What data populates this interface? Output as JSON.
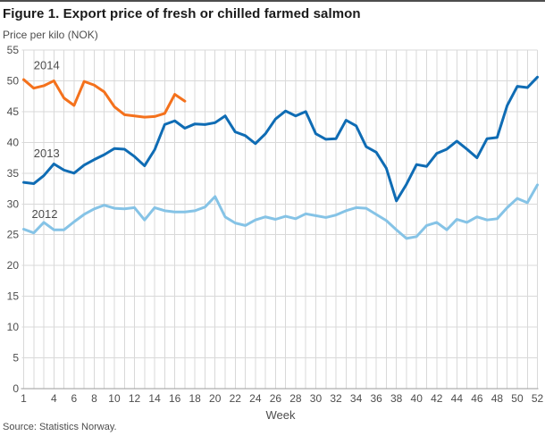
{
  "page": {
    "title": "Figure 1. Export price of fresh or chilled farmed salmon",
    "y_axis_title": "Price per kilo (NOK)",
    "x_axis_title": "Week",
    "source": "Source: Statistics Norway."
  },
  "colors": {
    "series_2014": "#f4711c",
    "series_2013": "#0f6cb4",
    "series_2012": "#85c3e6",
    "gridline": "#d9d9d9",
    "axis_line": "#9b9b9b",
    "tick_text": "#4d4d4d",
    "label_text": "#4d4d4d",
    "title_text": "#1a1a1a",
    "top_rule": "#4d4d4d"
  },
  "chart_data": {
    "type": "line",
    "title": "Figure 1. Export price of fresh or chilled farmed salmon",
    "xlabel": "Week",
    "ylabel": "Price per kilo (NOK)",
    "xlim": [
      1,
      52
    ],
    "ylim": [
      0,
      55
    ],
    "grid": true,
    "legend_position": "inline-left-labels",
    "x_ticks": [
      1,
      4,
      6,
      8,
      10,
      12,
      14,
      16,
      18,
      20,
      22,
      24,
      26,
      28,
      30,
      32,
      34,
      36,
      38,
      40,
      42,
      44,
      46,
      48,
      50,
      52
    ],
    "y_ticks": [
      0,
      5,
      10,
      15,
      20,
      25,
      30,
      35,
      40,
      45,
      50,
      55
    ],
    "series": [
      {
        "name": "2014",
        "color": "#f4711c",
        "label": {
          "week": 2.0,
          "value": 51.9
        },
        "x": [
          1,
          2,
          3,
          4,
          5,
          6,
          7,
          8,
          9,
          10,
          11,
          12,
          13,
          14,
          15,
          16,
          17
        ],
        "values": [
          50.2,
          48.8,
          49.2,
          50.0,
          47.2,
          46.0,
          49.9,
          49.3,
          48.2,
          45.8,
          44.5,
          44.3,
          44.1,
          44.2,
          44.7,
          47.8,
          46.7
        ]
      },
      {
        "name": "2013",
        "color": "#0f6cb4",
        "label": {
          "week": 2.0,
          "value": 37.6
        },
        "x": [
          1,
          2,
          3,
          4,
          5,
          6,
          7,
          8,
          9,
          10,
          11,
          12,
          13,
          14,
          15,
          16,
          17,
          18,
          19,
          20,
          21,
          22,
          23,
          24,
          25,
          26,
          27,
          28,
          29,
          30,
          31,
          32,
          33,
          34,
          35,
          36,
          37,
          38,
          39,
          40,
          41,
          42,
          43,
          44,
          45,
          46,
          47,
          48,
          49,
          50,
          51,
          52
        ],
        "values": [
          33.5,
          33.3,
          34.6,
          36.5,
          35.5,
          35.0,
          36.3,
          37.2,
          38.0,
          39.0,
          38.9,
          37.7,
          36.2,
          38.8,
          42.9,
          43.5,
          42.3,
          43.0,
          42.9,
          43.2,
          44.3,
          41.7,
          41.1,
          39.8,
          41.4,
          43.8,
          45.1,
          44.3,
          45.0,
          41.4,
          40.5,
          40.6,
          43.6,
          42.7,
          39.3,
          38.4,
          35.8,
          30.5,
          33.2,
          36.4,
          36.1,
          38.2,
          38.9,
          40.2,
          38.9,
          37.5,
          40.6,
          40.8,
          46.0,
          49.1,
          48.9,
          50.6
        ]
      },
      {
        "name": "2012",
        "color": "#85c3e6",
        "label": {
          "week": 1.8,
          "value": 27.7
        },
        "x": [
          1,
          2,
          3,
          4,
          5,
          6,
          7,
          8,
          9,
          10,
          11,
          12,
          13,
          14,
          15,
          16,
          17,
          18,
          19,
          20,
          21,
          22,
          23,
          24,
          25,
          26,
          27,
          28,
          29,
          30,
          31,
          32,
          33,
          34,
          35,
          36,
          37,
          38,
          39,
          40,
          41,
          42,
          43,
          44,
          45,
          46,
          47,
          48,
          49,
          50,
          51,
          52
        ],
        "values": [
          25.9,
          25.3,
          27.0,
          25.8,
          25.8,
          27.1,
          28.3,
          29.2,
          29.8,
          29.3,
          29.2,
          29.4,
          27.4,
          29.4,
          28.9,
          28.7,
          28.7,
          28.9,
          29.5,
          31.2,
          27.9,
          26.9,
          26.5,
          27.4,
          27.9,
          27.5,
          28.0,
          27.6,
          28.4,
          28.1,
          27.8,
          28.2,
          28.9,
          29.4,
          29.3,
          28.3,
          27.3,
          25.8,
          24.4,
          24.7,
          26.5,
          27.0,
          25.8,
          27.5,
          27.0,
          27.9,
          27.4,
          27.6,
          29.4,
          30.9,
          30.2,
          33.1
        ]
      }
    ]
  }
}
